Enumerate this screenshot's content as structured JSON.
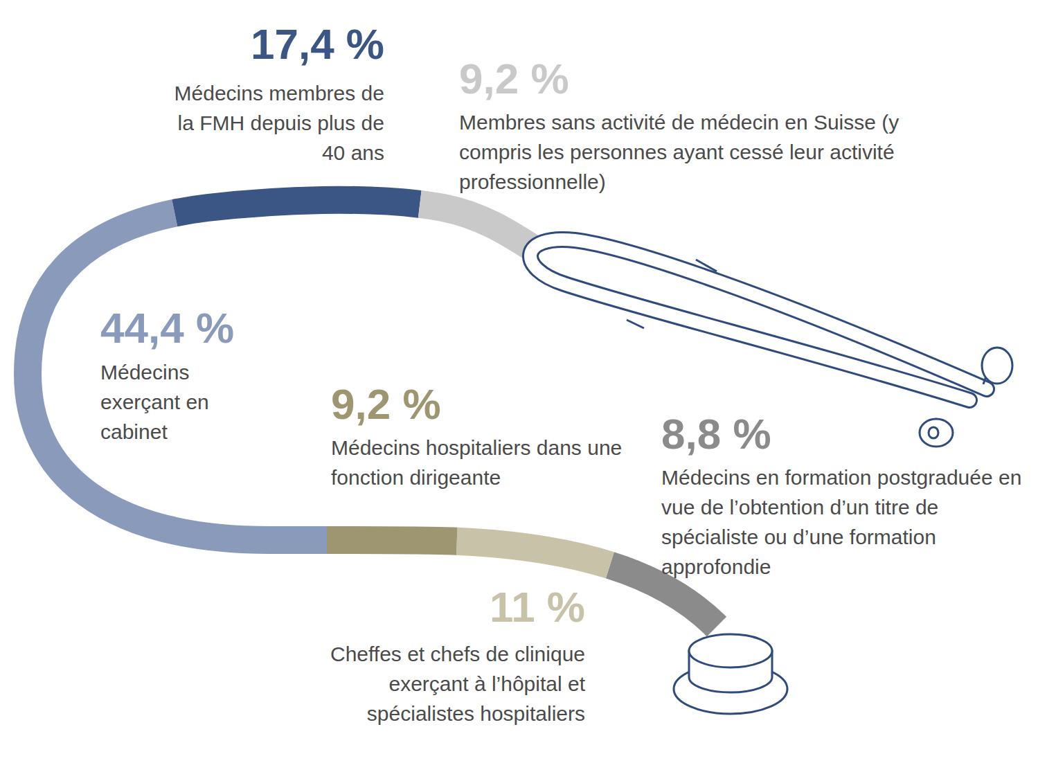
{
  "chart_data": {
    "type": "segmented",
    "categories": [
      "Médecins en formation postgraduée en vue de l’obtention d’un titre de spécialiste ou d’une formation approfondie",
      "Cheffes et chefs de clinique exerçant à l’hôpital et spécialistes hospitaliers",
      "Médecins hospitaliers dans une fonction dirigeante",
      "Médecins exerçant en cabinet",
      "Médecins membres de la FMH depuis plus de 40 ans",
      "Membres sans activité de médecin en Suisse (y compris les personnes ayant cessé leur activité professionnelle)"
    ],
    "values": [
      8.8,
      11,
      9.2,
      44.4,
      17.4,
      9.2
    ],
    "value_labels": [
      "8,8 %",
      "11 %",
      "9,2 %",
      "44,4 %",
      "17,4 %",
      "9,2 %"
    ],
    "colors": [
      "#8b8b8b",
      "#c8c2a8",
      "#9e9670",
      "#8a9aba",
      "#3b5585",
      "#c9c9c9"
    ],
    "data_labels": true
  }
}
